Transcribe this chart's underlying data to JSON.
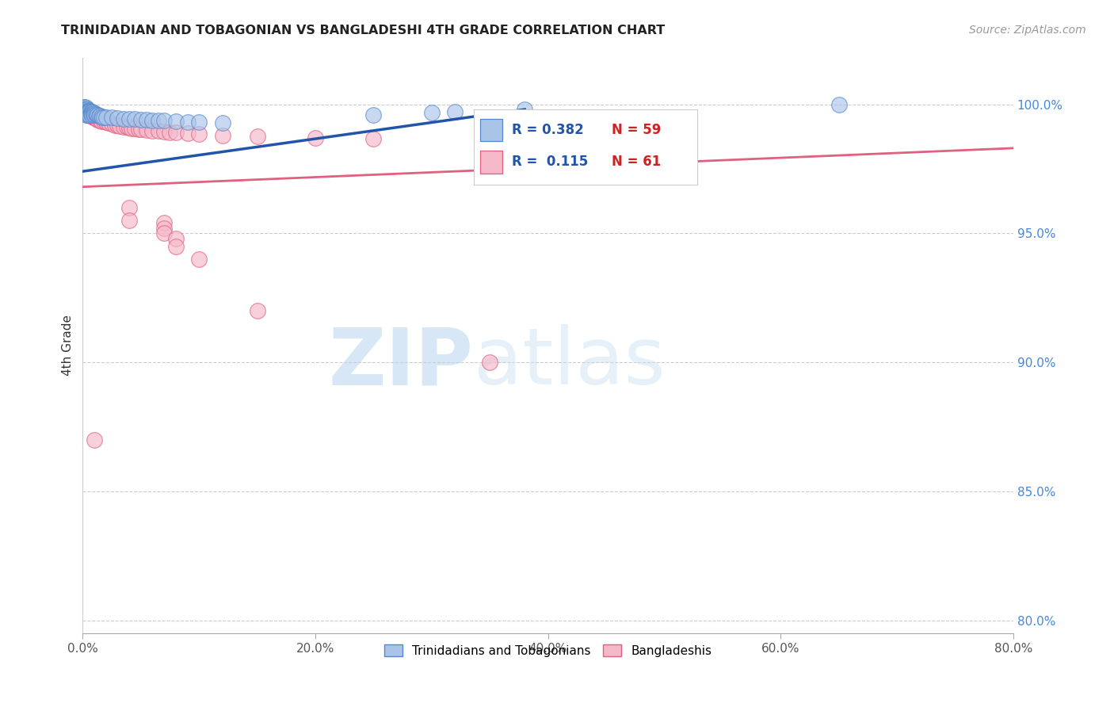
{
  "title": "TRINIDADIAN AND TOBAGONIAN VS BANGLADESHI 4TH GRADE CORRELATION CHART",
  "source": "Source: ZipAtlas.com",
  "ylabel": "4th Grade",
  "ytick_labels": [
    "100.0%",
    "95.0%",
    "90.0%",
    "85.0%",
    "80.0%"
  ],
  "ytick_values": [
    1.0,
    0.95,
    0.9,
    0.85,
    0.8
  ],
  "xlim": [
    0.0,
    0.8
  ],
  "ylim": [
    0.795,
    1.018
  ],
  "xtick_positions": [
    0.0,
    0.2,
    0.4,
    0.6,
    0.8
  ],
  "xtick_labels": [
    "0.0%",
    "20.0%",
    "40.0%",
    "60.0%",
    "80.0%"
  ],
  "legend1_r": "0.382",
  "legend1_n": "59",
  "legend2_r": "0.115",
  "legend2_n": "61",
  "color_blue": "#aac4e8",
  "color_pink": "#f5b8c8",
  "line_color_blue": "#2255aa",
  "line_color_pink": "#e06080",
  "watermark_zip": "ZIP",
  "watermark_atlas": "atlas",
  "legend_label1": "Trinidadians and Tobagonians",
  "legend_label2": "Bangladeshis",
  "blue_scatter_x": [
    0.001,
    0.001,
    0.001,
    0.002,
    0.002,
    0.002,
    0.003,
    0.003,
    0.003,
    0.003,
    0.004,
    0.004,
    0.004,
    0.004,
    0.005,
    0.005,
    0.005,
    0.005,
    0.006,
    0.006,
    0.006,
    0.007,
    0.007,
    0.007,
    0.008,
    0.008,
    0.008,
    0.009,
    0.009,
    0.01,
    0.01,
    0.011,
    0.012,
    0.013,
    0.014,
    0.015,
    0.016,
    0.017,
    0.018,
    0.02,
    0.025,
    0.03,
    0.035,
    0.04,
    0.045,
    0.05,
    0.055,
    0.06,
    0.065,
    0.07,
    0.08,
    0.09,
    0.1,
    0.12,
    0.25,
    0.3,
    0.32,
    0.38,
    0.65
  ],
  "blue_scatter_y": [
    0.999,
    0.998,
    0.997,
    0.999,
    0.998,
    0.997,
    0.9985,
    0.998,
    0.997,
    0.996,
    0.998,
    0.9975,
    0.997,
    0.996,
    0.9978,
    0.9975,
    0.997,
    0.996,
    0.9975,
    0.997,
    0.996,
    0.9972,
    0.9968,
    0.9962,
    0.997,
    0.9965,
    0.996,
    0.9968,
    0.9962,
    0.9965,
    0.996,
    0.9962,
    0.996,
    0.9958,
    0.9955,
    0.9955,
    0.9952,
    0.995,
    0.995,
    0.995,
    0.9948,
    0.9946,
    0.9944,
    0.9944,
    0.9942,
    0.994,
    0.994,
    0.9938,
    0.9936,
    0.9936,
    0.9934,
    0.9932,
    0.993,
    0.9928,
    0.996,
    0.9968,
    0.9972,
    0.998,
    0.9998
  ],
  "pink_scatter_x": [
    0.001,
    0.001,
    0.002,
    0.002,
    0.003,
    0.003,
    0.004,
    0.004,
    0.005,
    0.005,
    0.006,
    0.006,
    0.007,
    0.007,
    0.008,
    0.008,
    0.009,
    0.01,
    0.011,
    0.012,
    0.013,
    0.015,
    0.016,
    0.018,
    0.02,
    0.022,
    0.025,
    0.028,
    0.03,
    0.032,
    0.035,
    0.038,
    0.04,
    0.042,
    0.045,
    0.048,
    0.05,
    0.055,
    0.06,
    0.065,
    0.07,
    0.075,
    0.08,
    0.09,
    0.1,
    0.12,
    0.15,
    0.2,
    0.25,
    0.35,
    0.04,
    0.04,
    0.07,
    0.07,
    0.07,
    0.08,
    0.08,
    0.1,
    0.15,
    0.35,
    0.01
  ],
  "pink_scatter_y": [
    0.998,
    0.997,
    0.9978,
    0.9972,
    0.9975,
    0.9968,
    0.997,
    0.9962,
    0.9968,
    0.996,
    0.9965,
    0.9958,
    0.9962,
    0.9955,
    0.9958,
    0.9952,
    0.995,
    0.9948,
    0.9945,
    0.9942,
    0.994,
    0.9938,
    0.9935,
    0.9933,
    0.993,
    0.9928,
    0.9925,
    0.992,
    0.9918,
    0.9916,
    0.9914,
    0.9912,
    0.991,
    0.9908,
    0.9906,
    0.9904,
    0.9902,
    0.99,
    0.9898,
    0.9896,
    0.9894,
    0.9892,
    0.989,
    0.9888,
    0.9886,
    0.988,
    0.9875,
    0.987,
    0.9868,
    0.9866,
    0.96,
    0.955,
    0.954,
    0.952,
    0.95,
    0.948,
    0.945,
    0.94,
    0.92,
    0.9,
    0.87
  ],
  "grid_color": "#cccccc",
  "tick_color": "#888888",
  "right_tick_color": "#4488dd"
}
